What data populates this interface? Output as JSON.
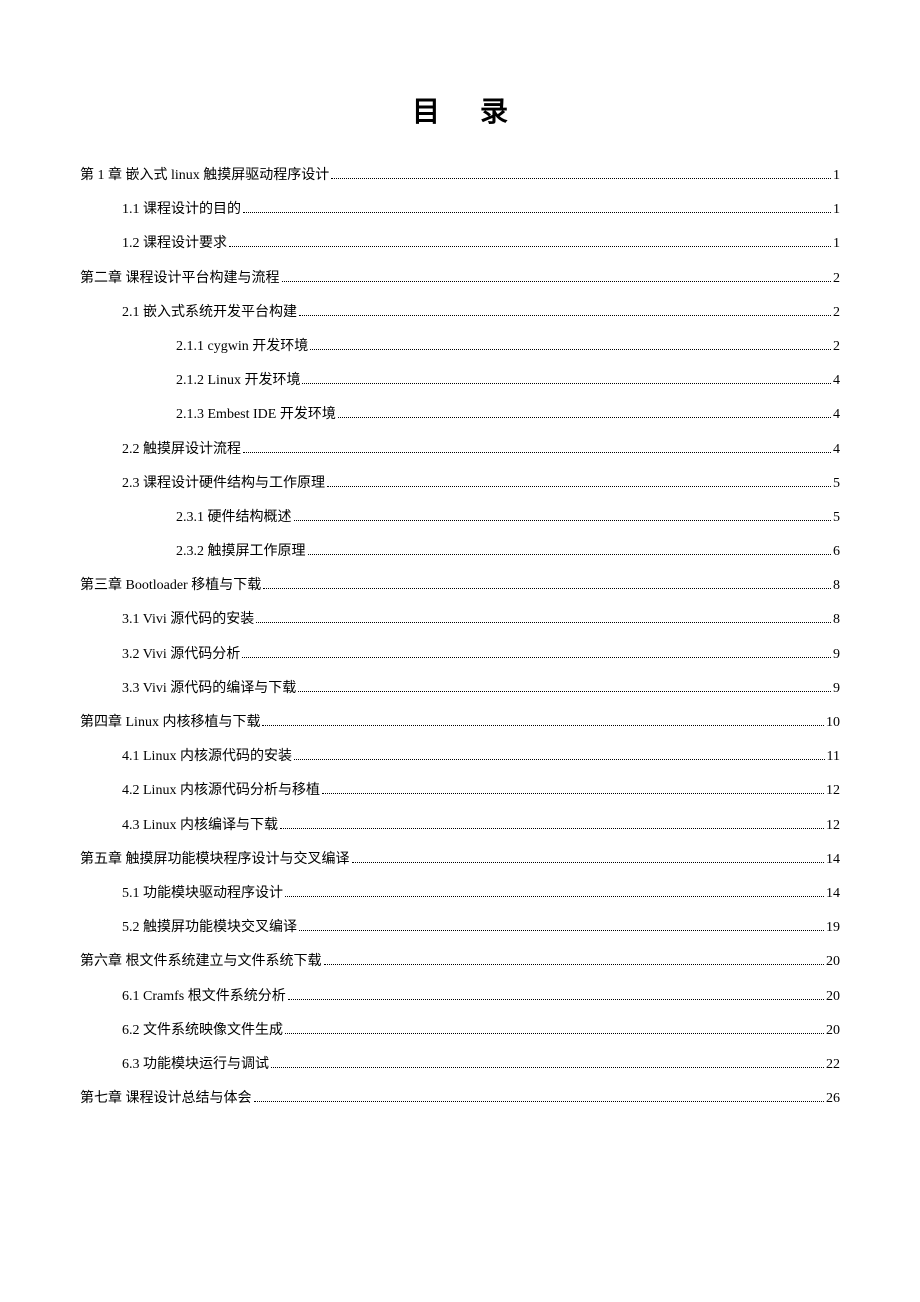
{
  "title": "目录",
  "entries": [
    {
      "level": 1,
      "label": "第 1 章 嵌入式 linux 触摸屏驱动程序设计",
      "page": "1"
    },
    {
      "level": 2,
      "label": "1.1 课程设计的目的",
      "page": "1"
    },
    {
      "level": 2,
      "label": "1.2 课程设计要求",
      "page": "1"
    },
    {
      "level": 1,
      "label": "第二章 课程设计平台构建与流程",
      "page": "2"
    },
    {
      "level": 2,
      "label": "2.1 嵌入式系统开发平台构建",
      "page": "2"
    },
    {
      "level": 3,
      "label": "2.1.1 cygwin 开发环境",
      "page": "2"
    },
    {
      "level": 3,
      "label": "2.1.2 Linux 开发环境",
      "page": "4"
    },
    {
      "level": 3,
      "label": "2.1.3 Embest IDE 开发环境",
      "page": "4"
    },
    {
      "level": 2,
      "label": "2.2 触摸屏设计流程",
      "page": "4"
    },
    {
      "level": 2,
      "label": "2.3 课程设计硬件结构与工作原理",
      "page": "5"
    },
    {
      "level": 3,
      "label": "2.3.1 硬件结构概述",
      "page": "5"
    },
    {
      "level": 3,
      "label": "2.3.2 触摸屏工作原理",
      "page": "6"
    },
    {
      "level": 1,
      "label": "第三章 Bootloader 移植与下载",
      "page": "8"
    },
    {
      "level": 2,
      "label": "3.1 Vivi  源代码的安装",
      "page": "8"
    },
    {
      "level": 2,
      "label": "3.2 Vivi 源代码分析",
      "page": "9"
    },
    {
      "level": 2,
      "label": "3.3 Vivi  源代码的编译与下载",
      "page": "9"
    },
    {
      "level": 1,
      "label": "第四章 Linux 内核移植与下载",
      "page": "10"
    },
    {
      "level": 2,
      "label": "4.1 Linux  内核源代码的安装",
      "page": "11"
    },
    {
      "level": 2,
      "label": "4.2 Linux 内核源代码分析与移植",
      "page": "12"
    },
    {
      "level": 2,
      "label": "4.3 Linux 内核编译与下载",
      "page": "12"
    },
    {
      "level": 1,
      "label": "第五章 触摸屏功能模块程序设计与交叉编译",
      "page": "14"
    },
    {
      "level": 2,
      "label": "5.1 功能模块驱动程序设计",
      "page": "14"
    },
    {
      "level": 2,
      "label": "5.2 触摸屏功能模块交叉编译",
      "page": "19"
    },
    {
      "level": 1,
      "label": "第六章 根文件系统建立与文件系统下载",
      "page": "20"
    },
    {
      "level": 2,
      "label": "6.1 Cramfs 根文件系统分析",
      "page": "20"
    },
    {
      "level": 2,
      "label": "6.2 文件系统映像文件生成",
      "page": "20"
    },
    {
      "level": 2,
      "label": "6.3 功能模块运行与调试",
      "page": "22"
    },
    {
      "level": 1,
      "label": "第七章 课程设计总结与体会",
      "page": "26"
    }
  ]
}
